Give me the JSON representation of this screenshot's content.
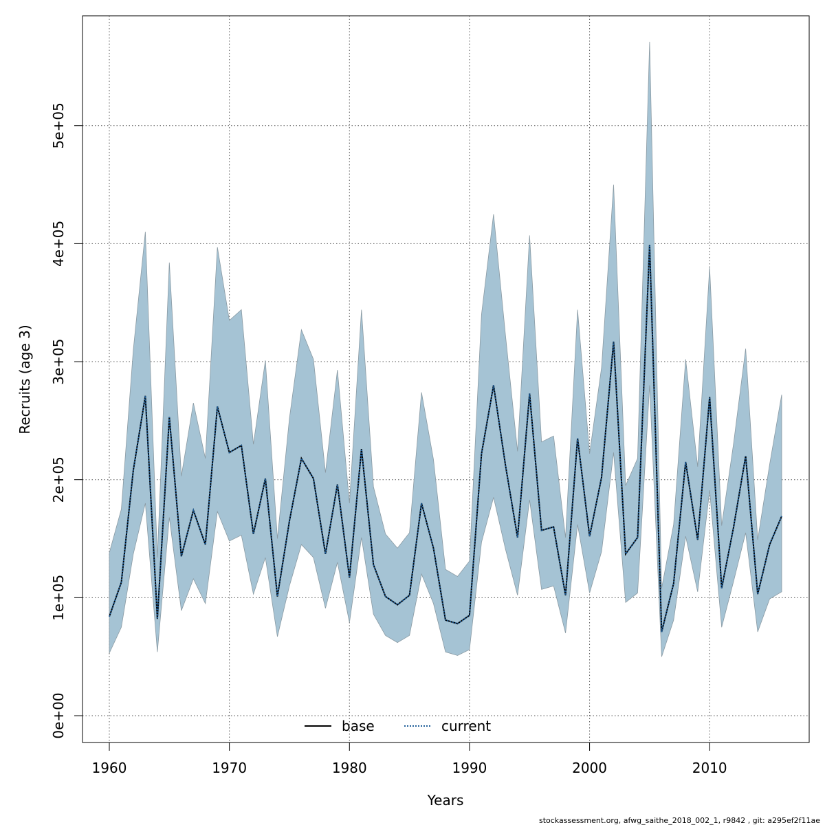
{
  "chart_data": {
    "type": "area",
    "xlabel": "Years",
    "ylabel": "Recruits (age 3)",
    "xlim": [
      1960,
      2016
    ],
    "ylim": [
      0,
      570000
    ],
    "x_ticks": [
      1960,
      1970,
      1980,
      1990,
      2000,
      2010
    ],
    "x_tick_labels": [
      "1960",
      "1970",
      "1980",
      "1990",
      "2000",
      "2010"
    ],
    "y_ticks": [
      0,
      100000,
      200000,
      300000,
      400000,
      500000
    ],
    "y_tick_labels": [
      "0e+00",
      "1e+05",
      "2e+05",
      "3e+05",
      "4e+05",
      "5e+05"
    ],
    "grid": true,
    "legend_position": "bottom-center",
    "x": [
      1960,
      1961,
      1962,
      1963,
      1964,
      1965,
      1966,
      1967,
      1968,
      1969,
      1970,
      1971,
      1972,
      1973,
      1974,
      1975,
      1976,
      1977,
      1978,
      1979,
      1980,
      1981,
      1982,
      1983,
      1984,
      1985,
      1986,
      1987,
      1988,
      1989,
      1990,
      1991,
      1992,
      1993,
      1994,
      1995,
      1996,
      1997,
      1998,
      1999,
      2000,
      2001,
      2002,
      2003,
      2004,
      2005,
      2006,
      2007,
      2008,
      2009,
      2010,
      2011,
      2012,
      2013,
      2014,
      2015,
      2016
    ],
    "series": [
      {
        "name": "base",
        "line_style": "solid",
        "color": "#000000",
        "values": [
          84000,
          113000,
          208000,
          271000,
          82000,
          253000,
          135000,
          174000,
          145000,
          262000,
          223000,
          229000,
          154000,
          201000,
          101000,
          165000,
          218000,
          201000,
          137000,
          196000,
          117000,
          226000,
          128000,
          101000,
          94000,
          102000,
          180000,
          142000,
          81000,
          78000,
          85000,
          222000,
          280000,
          212000,
          151000,
          273000,
          157000,
          160000,
          102000,
          235000,
          152000,
          202000,
          317000,
          137000,
          151000,
          399000,
          71000,
          112000,
          215000,
          149000,
          270000,
          108000,
          160000,
          220000,
          103000,
          145000,
          169000
        ]
      },
      {
        "name": "current",
        "line_style": "dotted",
        "color": "#1f5e99",
        "values": [
          84000,
          113000,
          208000,
          271000,
          82000,
          253000,
          135000,
          174000,
          145000,
          262000,
          223000,
          229000,
          154000,
          201000,
          101000,
          165000,
          218000,
          201000,
          137000,
          196000,
          117000,
          226000,
          128000,
          101000,
          94000,
          102000,
          180000,
          142000,
          81000,
          78000,
          85000,
          222000,
          280000,
          212000,
          151000,
          273000,
          157000,
          160000,
          102000,
          235000,
          152000,
          202000,
          317000,
          137000,
          151000,
          399000,
          71000,
          112000,
          215000,
          149000,
          270000,
          108000,
          160000,
          220000,
          103000,
          145000,
          169000
        ]
      }
    ],
    "band": {
      "color": "#a5c3d4",
      "edge_color": "#8a9aa3",
      "upper": [
        138000,
        175000,
        310000,
        410000,
        134000,
        384000,
        203000,
        265000,
        218000,
        397000,
        335000,
        344000,
        230000,
        301000,
        150000,
        252000,
        327000,
        302000,
        206000,
        293000,
        180000,
        344000,
        194000,
        154000,
        142000,
        155000,
        274000,
        217000,
        124000,
        118000,
        131000,
        340000,
        425000,
        322000,
        224000,
        407000,
        232000,
        237000,
        151000,
        344000,
        222000,
        295000,
        450000,
        195000,
        218000,
        571000,
        108000,
        162000,
        302000,
        211000,
        380000,
        161000,
        231000,
        311000,
        149000,
        213000,
        272000
      ],
      "lower": [
        53000,
        75000,
        137000,
        180000,
        54000,
        168000,
        89000,
        116000,
        95000,
        173000,
        148000,
        153000,
        103000,
        134000,
        67000,
        110000,
        145000,
        134000,
        91000,
        130000,
        79000,
        151000,
        86000,
        68000,
        62000,
        68000,
        120000,
        95000,
        54000,
        51000,
        56000,
        147000,
        185000,
        141000,
        102000,
        183000,
        107000,
        110000,
        70000,
        162000,
        104000,
        139000,
        223000,
        96000,
        104000,
        280000,
        50000,
        81000,
        152000,
        105000,
        191000,
        75000,
        114000,
        155000,
        71000,
        99000,
        105000
      ]
    }
  },
  "footer": {
    "credit": "stockassessment.org, afwg_saithe_2018_002_1, r9842 , git: a295ef2f11ae"
  }
}
